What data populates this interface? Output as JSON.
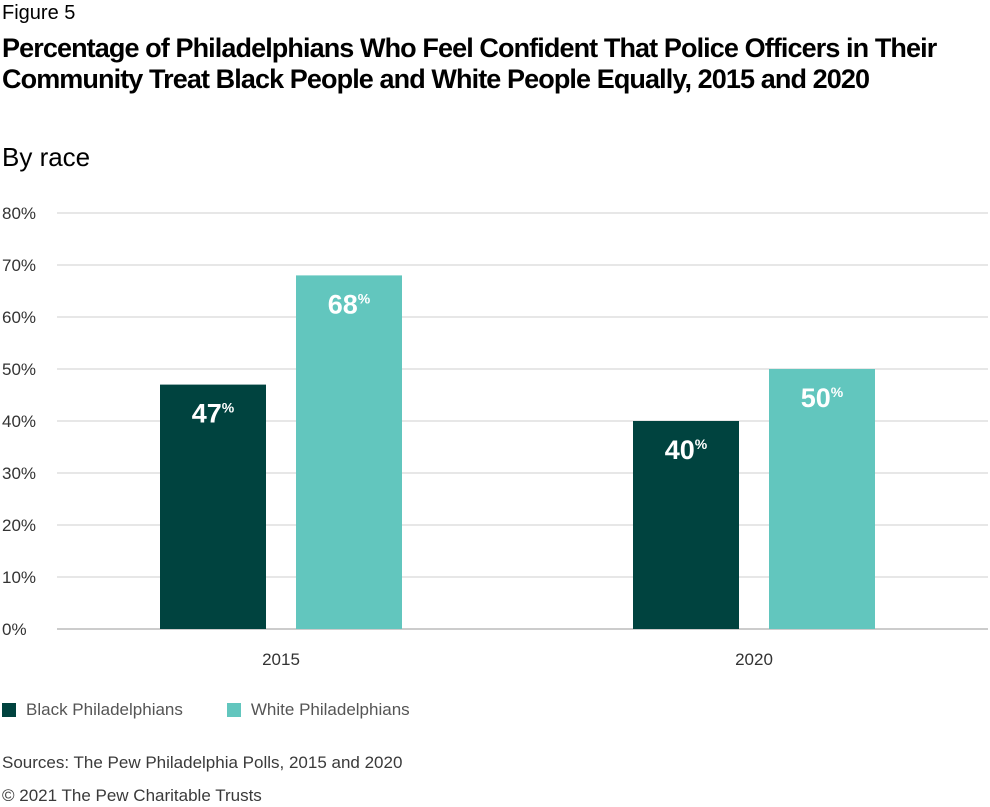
{
  "figure_label": "Figure 5",
  "chart_data": {
    "type": "bar",
    "title": "Percentage of Philadelphians Who Feel Confident That Police Officers in Their Community Treat Black People and White People Equally, 2015 and 2020",
    "subtitle": "By race",
    "categories": [
      "2015",
      "2020"
    ],
    "series": [
      {
        "name": "Black Philadelphians",
        "values": [
          47,
          40
        ],
        "color": "#00433f"
      },
      {
        "name": "White Philadelphians",
        "values": [
          68,
          50
        ],
        "color": "#62c6be"
      }
    ],
    "value_suffix": "%",
    "ylim": [
      0,
      80
    ],
    "yticks": [
      0,
      10,
      20,
      30,
      40,
      50,
      60,
      70,
      80
    ],
    "ytick_labels": [
      "0%",
      "10%",
      "20%",
      "30%",
      "40%",
      "50%",
      "60%",
      "70%",
      "80%"
    ],
    "grid": true,
    "legend_position": "bottom-left"
  },
  "sources": "Sources: The Pew Philadelphia Polls, 2015 and 2020",
  "copyright": "© 2021 The Pew Charitable Trusts"
}
